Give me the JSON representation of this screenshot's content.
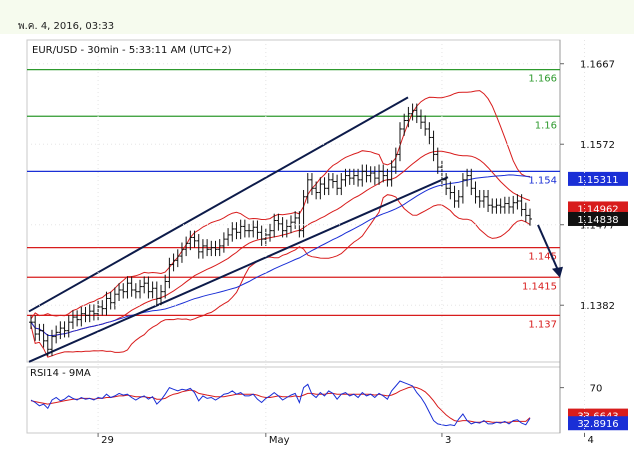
{
  "header": {
    "date_text": "พ.ค. 4, 2016, 03:33"
  },
  "chart_data": {
    "type": "line",
    "title": "EUR/USD - 30min - 5:33:11 AM (UTC+2)",
    "price_ticks": [
      "1.1667",
      "1.1572",
      "1.1477",
      "1.1382"
    ],
    "price_tick_values": [
      1.1667,
      1.1572,
      1.1477,
      1.1382
    ],
    "ylim": [
      1.1315,
      1.1695
    ],
    "x_tick_labels": [
      "29",
      "May",
      "3",
      "4"
    ],
    "levels": [
      {
        "label": "1.166",
        "value": 1.166,
        "color": "#2e9a2e"
      },
      {
        "label": "1.16",
        "value": 1.1605,
        "color": "#2e9a2e"
      },
      {
        "label": "1.154",
        "value": 1.154,
        "color": "#1a2fd6"
      },
      {
        "label": "1.145",
        "value": 1.145,
        "color": "#d81c1c"
      },
      {
        "label": "1.1415",
        "value": 1.1415,
        "color": "#d81c1c"
      },
      {
        "label": "1.137",
        "value": 1.137,
        "color": "#d81c1c"
      }
    ],
    "price_badges": [
      {
        "label": "1.15311",
        "value": 1.15311,
        "color": "#1a2fd6"
      },
      {
        "label": "1.14962",
        "value": 1.14962,
        "color": "#d81c1c"
      },
      {
        "label": "1.14838",
        "value": 1.14838,
        "color": "#111111"
      }
    ],
    "series": [
      {
        "name": "EUR/USD",
        "values": [
          1.1362,
          1.1348,
          1.1352,
          1.134,
          1.133,
          1.1345,
          1.135,
          1.1355,
          1.1352,
          1.1362,
          1.1368,
          1.1365,
          1.1372,
          1.137,
          1.1375,
          1.1372,
          1.138,
          1.1378,
          1.139,
          1.1385,
          1.1395,
          1.14,
          1.1398,
          1.1408,
          1.14,
          1.1398,
          1.1404,
          1.1408,
          1.1398,
          1.1402,
          1.139,
          1.1398,
          1.141,
          1.143,
          1.1435,
          1.144,
          1.1448,
          1.1455,
          1.1462,
          1.1458,
          1.1445,
          1.1452,
          1.1448,
          1.145,
          1.1448,
          1.1452,
          1.146,
          1.1465,
          1.1472,
          1.1468,
          1.1475,
          1.147,
          1.147,
          1.1474,
          1.1468,
          1.146,
          1.1465,
          1.147,
          1.1482,
          1.1478,
          1.147,
          1.1475,
          1.148,
          1.1485,
          1.147,
          1.151,
          1.153,
          1.152,
          1.1515,
          1.1525,
          1.152,
          1.153,
          1.1528,
          1.152,
          1.153,
          1.1535,
          1.1532,
          1.1535,
          1.153,
          1.154,
          1.1535,
          1.1538,
          1.1532,
          1.154,
          1.1535,
          1.153,
          1.1545,
          1.156,
          1.159,
          1.16,
          1.1608,
          1.1612,
          1.1605,
          1.1598,
          1.159,
          1.158,
          1.156,
          1.1545,
          1.153,
          1.152,
          1.1515,
          1.1505,
          1.151,
          1.153,
          1.1535,
          1.152,
          1.151,
          1.1505,
          1.151,
          1.15,
          1.1498,
          1.15,
          1.1498,
          1.1502,
          1.1498,
          1.1503,
          1.1505,
          1.1495,
          1.1488,
          1.14838
        ]
      }
    ],
    "indicator": {
      "title": "RSI14 - 9MA",
      "ticks": [
        "70"
      ],
      "tick_values": [
        70
      ],
      "ylim": [
        15,
        95
      ],
      "badges": [
        {
          "label": "33.6643",
          "value": 33.6643,
          "color": "#d81c1c"
        },
        {
          "label": "32.8916",
          "value": 32.8916,
          "color": "#1a2fd6"
        }
      ],
      "rsi": [
        55,
        52,
        48,
        50,
        45,
        55,
        58,
        54,
        56,
        60,
        57,
        55,
        58,
        56,
        57,
        55,
        58,
        57,
        62,
        58,
        60,
        63,
        61,
        62,
        58,
        55,
        58,
        60,
        56,
        59,
        50,
        55,
        62,
        70,
        68,
        66,
        68,
        67,
        69,
        64,
        54,
        60,
        57,
        58,
        55,
        58,
        62,
        63,
        66,
        62,
        64,
        60,
        60,
        62,
        56,
        52,
        57,
        60,
        64,
        60,
        55,
        58,
        61,
        63,
        52,
        70,
        74,
        62,
        58,
        64,
        60,
        66,
        63,
        56,
        62,
        64,
        60,
        62,
        58,
        64,
        60,
        62,
        58,
        63,
        60,
        56,
        66,
        72,
        78,
        76,
        74,
        72,
        64,
        58,
        50,
        40,
        30,
        26,
        25,
        24,
        25,
        24,
        32,
        38,
        30,
        26,
        28,
        27,
        30,
        26,
        26,
        28,
        27,
        29,
        26,
        30,
        31,
        27,
        25,
        32.8916
      ],
      "ma": [
        54,
        53,
        52,
        51,
        50,
        51,
        52,
        53,
        54,
        55,
        56,
        56,
        57,
        57,
        57,
        56,
        57,
        57,
        58,
        58,
        59,
        60,
        60,
        61,
        60,
        59,
        59,
        59,
        58,
        58,
        56,
        56,
        57,
        60,
        62,
        63,
        65,
        66,
        67,
        66,
        63,
        62,
        61,
        60,
        59,
        59,
        59,
        60,
        61,
        62,
        62,
        62,
        62,
        62,
        61,
        59,
        58,
        58,
        59,
        60,
        59,
        59,
        59,
        60,
        59,
        61,
        63,
        63,
        62,
        62,
        62,
        63,
        63,
        62,
        62,
        62,
        62,
        62,
        62,
        62,
        62,
        62,
        61,
        62,
        61,
        60,
        61,
        63,
        66,
        68,
        70,
        71,
        70,
        68,
        65,
        60,
        54,
        47,
        42,
        37,
        33,
        30,
        29,
        30,
        30,
        29,
        28,
        28,
        29,
        29,
        28,
        28,
        28,
        28,
        28,
        29,
        29,
        29,
        29,
        33.6643
      ]
    }
  }
}
